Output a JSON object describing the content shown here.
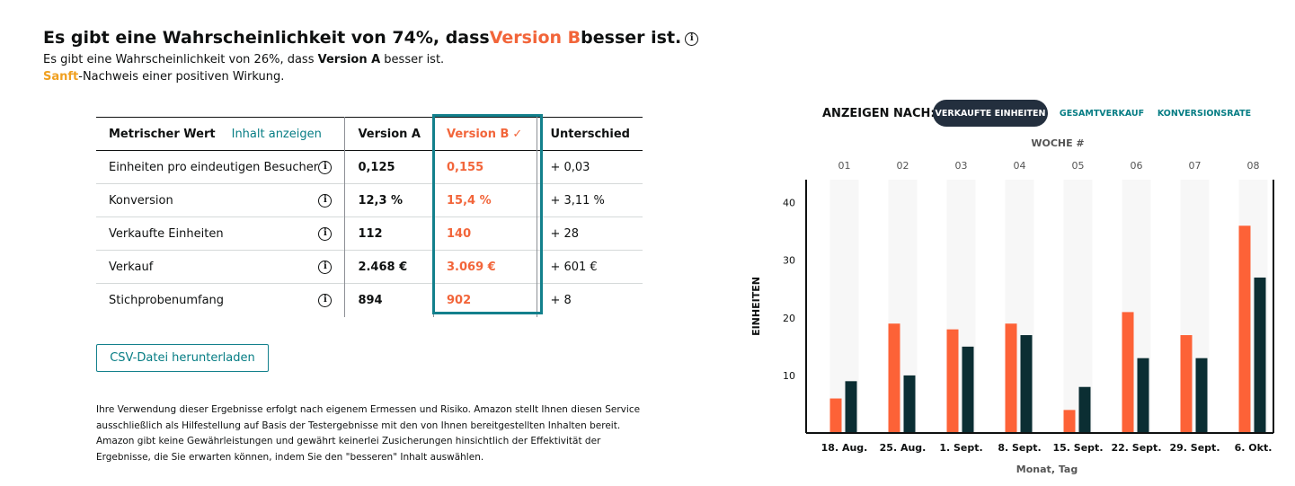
{
  "summary": {
    "headline_prefix": "Es gibt eine Wahrscheinlichkeit von 74%, dass ",
    "headline_accent": "Version B",
    "headline_suffix": " besser ist.",
    "line2_prefix": "Es gibt eine Wahrscheinlichkeit von 26%, dass ",
    "line2_bold": "Version A",
    "line2_suffix": " besser ist.",
    "evidence_label": "Sanft",
    "evidence_rest": "-Nachweis einer positiven Wirkung."
  },
  "table": {
    "header_metric": "Metrischer Wert",
    "show_content": "Inhalt anzeigen",
    "header_a": "Version A",
    "header_b": "Version B",
    "header_b_check": "✓",
    "header_diff": "Unterschied",
    "rows": [
      {
        "metric": "Einheiten pro eindeutigen Besucher",
        "a": "0,125",
        "b": "0,155",
        "diff": "+ 0,03"
      },
      {
        "metric": "Konversion",
        "a": "12,3 %",
        "b": "15,4 %",
        "diff": "+ 3,11 %"
      },
      {
        "metric": "Verkaufte Einheiten",
        "a": "112",
        "b": "140",
        "diff": "+ 28"
      },
      {
        "metric": "Verkauf",
        "a": "2.468 €",
        "b": "3.069 €",
        "diff": "+ 601 €"
      },
      {
        "metric": "Stichprobenumfang",
        "a": "894",
        "b": "902",
        "diff": "+ 8"
      }
    ]
  },
  "csv_button": "CSV-Datei herunterladen",
  "disclaimer": "Ihre Verwendung dieser Ergebnisse erfolgt nach eigenem Ermessen und Risiko. Amazon stellt Ihnen diesen Service ausschließlich als Hilfestellung auf Basis der Testergebnisse mit den von Ihnen bereitgestellten Inhalten bereit. Amazon gibt keine Gewährleistungen und gewährt keinerlei Zusicherungen hinsichtlich der Effektivität der Ergebnisse, die Sie erwarten können, indem Sie den \"besseren\" Inhalt auswählen.",
  "chart_controls": {
    "view_by": "ANZEIGEN NACH:",
    "options": [
      "VERKAUFTE EINHEITEN",
      "GESAMTVERKAUF",
      "KONVERSIONSRATE"
    ],
    "active": "VERKAUFTE EINHEITEN"
  },
  "colors": {
    "version_a": "#0b2e33",
    "version_b": "#fd6237",
    "accent": "#13808c",
    "evidence": "#f0a020"
  },
  "chart_data": {
    "type": "bar",
    "top_axis_label": "WOCHE #",
    "weeks": [
      "01",
      "02",
      "03",
      "04",
      "05",
      "06",
      "07",
      "08"
    ],
    "categories": [
      "18. Aug.",
      "25. Aug.",
      "1. Sept.",
      "8. Sept.",
      "15. Sept.",
      "22. Sept.",
      "29. Sept.",
      "6. Okt."
    ],
    "xlabel": "Monat, Tag",
    "ylabel": "EINHEITEN",
    "yticks": [
      10,
      20,
      30,
      40
    ],
    "ylim": [
      0,
      44
    ],
    "series": [
      {
        "values": [
          6,
          19,
          18,
          19,
          4,
          21,
          17,
          36
        ]
      },
      {
        "values": [
          9,
          10,
          15,
          17,
          8,
          13,
          13,
          27
        ]
      }
    ],
    "grid": false
  }
}
